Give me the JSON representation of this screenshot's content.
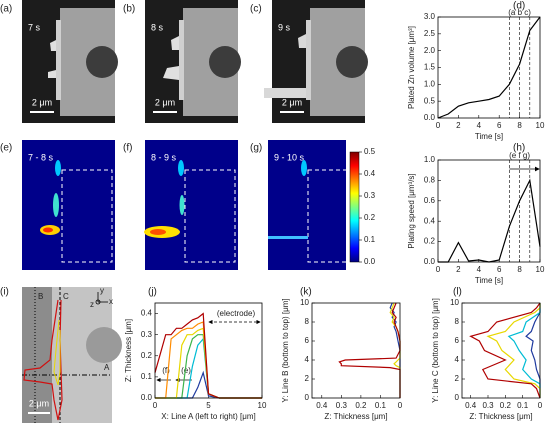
{
  "images": [
    {
      "label": "(a)",
      "time": "7 s",
      "scale_bar": "2 μm"
    },
    {
      "label": "(b)",
      "time": "8 s",
      "scale_bar": "2 μm"
    },
    {
      "label": "(c)",
      "time": "9 s",
      "scale_bar": "2 μm"
    },
    {
      "label": "(e)",
      "time": "7 - 8 s"
    },
    {
      "label": "(f)",
      "time": "8 - 9 s"
    },
    {
      "label": "(g)",
      "time": "9 - 10 s"
    },
    {
      "label": "(i)",
      "scale_bar": "2 μm",
      "lines": [
        "B",
        "C",
        "A"
      ],
      "axes": [
        "y",
        "z",
        "x"
      ]
    }
  ],
  "colorbar": {
    "ylim": [
      0,
      0.5
    ],
    "yticks": [
      {
        "value": 0,
        "label": "0.0"
      },
      0.1,
      0.2,
      0.3,
      0.4,
      0.5
    ]
  },
  "chart_data": [
    {
      "type": "line",
      "label": "(d)",
      "xlabel": "Time [s]",
      "ylabel": "Plated Zn volume [μm³]",
      "x": [
        0,
        1,
        2,
        3,
        4,
        5,
        6,
        7,
        8,
        9,
        10
      ],
      "series": [
        {
          "color": "#000000",
          "values": [
            0,
            0.12,
            0.35,
            0.45,
            0.5,
            0.55,
            0.65,
            1.0,
            1.6,
            2.6,
            3.0
          ]
        }
      ],
      "xlim": [
        0,
        10
      ],
      "ylim": [
        0,
        3
      ],
      "xticks": [
        0,
        2,
        4,
        6,
        8,
        10
      ],
      "yticks": [
        {
          "value": 0,
          "label": "0.0"
        },
        0.5,
        {
          "value": 1,
          "label": "1.0"
        },
        1.5,
        {
          "value": 2,
          "label": "2.0"
        },
        2.5,
        {
          "value": 3,
          "label": "3.0"
        }
      ],
      "vlines": [
        7,
        8,
        9
      ],
      "vline_label": "(a b c)"
    },
    {
      "type": "line",
      "label": "(h)",
      "xlabel": "Time [s]",
      "ylabel": "Plating speed [μm³/s]",
      "x": [
        0,
        1,
        2,
        3,
        4,
        5,
        6,
        7,
        8,
        9,
        10
      ],
      "series": [
        {
          "color": "#000000",
          "values": [
            0,
            0,
            0.19,
            0.01,
            0.02,
            0,
            0.02,
            0.35,
            0.6,
            0.8,
            0.15
          ]
        }
      ],
      "xlim": [
        0,
        10
      ],
      "ylim": [
        0,
        1
      ],
      "xticks": [
        0,
        2,
        4,
        6,
        8,
        10
      ],
      "yticks": [
        {
          "value": 0,
          "label": "0.0"
        },
        0.2,
        0.4,
        0.6,
        0.8,
        {
          "value": 1,
          "label": "1.0"
        }
      ],
      "vlines": [
        7,
        8,
        9
      ],
      "vline_label": "(e f g)",
      "arrow": true
    },
    {
      "type": "line",
      "label": "(j)",
      "xlabel": "X: Line A (left to right) [μm]",
      "ylabel": "Z: Thickness [μm]",
      "x": [
        0,
        1,
        1.5,
        2,
        2.5,
        3,
        3.5,
        4,
        4.5,
        5,
        6,
        8,
        10
      ],
      "series": [
        {
          "color": "#1f3a9f",
          "values": [
            0,
            0,
            0,
            0,
            0,
            0,
            0,
            0.05,
            0.12,
            0.01,
            0,
            0,
            0
          ]
        },
        {
          "color": "#00bcd4",
          "values": [
            0,
            0,
            0,
            0,
            0,
            0,
            0.15,
            0.25,
            0.28,
            0.02,
            0,
            0,
            0
          ]
        },
        {
          "color": "#3cb44b",
          "values": [
            0,
            0,
            0,
            0,
            0,
            0.2,
            0.28,
            0.3,
            0.3,
            0.02,
            0,
            0,
            0
          ]
        },
        {
          "color": "#e8d800",
          "values": [
            0,
            0,
            0,
            0,
            0.25,
            0.3,
            0.3,
            0.32,
            0.33,
            0.02,
            0,
            0,
            0
          ]
        },
        {
          "color": "#ff8c00",
          "values": [
            0,
            0,
            0.28,
            0.3,
            0.32,
            0.33,
            0.33,
            0.35,
            0.36,
            0.02,
            0,
            0,
            0
          ]
        },
        {
          "color": "#b00000",
          "values": [
            0.12,
            0.3,
            0.3,
            0.33,
            0.33,
            0.35,
            0.37,
            0.38,
            0.4,
            0.02,
            0,
            0,
            0
          ]
        }
      ],
      "xlim": [
        0,
        10
      ],
      "ylim": [
        0,
        0.45
      ],
      "xticks": [
        0,
        5,
        10
      ],
      "yticks": [
        {
          "value": 0,
          "label": "0.0"
        },
        0.1,
        0.2,
        0.3,
        0.4
      ],
      "annotations": [
        "(electrode)",
        "(f)",
        "(e)"
      ]
    },
    {
      "type": "line",
      "label": "(k)",
      "xlabel": "Z: Thickness [μm]",
      "ylabel": "Y: Line B (bottom to top) [μm]",
      "y": [
        0,
        1,
        2,
        3,
        3.2,
        3.4,
        3.6,
        3.8,
        4,
        4.2,
        5,
        6,
        7,
        7.5,
        8,
        8.5,
        9,
        9.5,
        10
      ],
      "series": [
        {
          "color": "#1f3a9f",
          "values": [
            0,
            0,
            0,
            0,
            0,
            0,
            0,
            0,
            0,
            0,
            0,
            0.01,
            0.02,
            0.03,
            0.02,
            0.04,
            0.03,
            0.05,
            0.04
          ]
        },
        {
          "color": "#e8d800",
          "values": [
            0,
            0,
            0,
            0,
            0,
            0.02,
            0.03,
            0.02,
            0.01,
            0,
            0,
            0,
            0.01,
            0.02,
            0.04,
            0.03,
            0.05,
            0.04,
            0.03
          ]
        },
        {
          "color": "#b00000",
          "values": [
            0,
            0,
            0,
            0,
            0.05,
            0.3,
            0.3,
            0.31,
            0.28,
            0.02,
            0,
            0,
            0.01,
            0.02,
            0.03,
            0.02,
            0.04,
            0.03,
            0.02
          ]
        }
      ],
      "xlim": [
        0.45,
        0
      ],
      "ylim": [
        0,
        10
      ],
      "xticks": [
        0.4,
        0.3,
        0.2,
        0.1,
        0
      ],
      "yticks": [
        0,
        2,
        4,
        6,
        8,
        10
      ]
    },
    {
      "type": "line",
      "label": "(l)",
      "xlabel": "Z: Thickness [μm]",
      "ylabel": "Y: Line C (bottom to top) [μm]",
      "y": [
        0,
        1,
        1.5,
        2,
        3,
        4,
        5,
        6,
        6.5,
        7,
        8,
        9,
        9.5,
        10
      ],
      "series": [
        {
          "color": "#1f3a9f",
          "values": [
            0,
            0,
            0,
            0,
            0.02,
            0.03,
            0.05,
            0.04,
            0.08,
            0.05,
            0.03,
            0,
            0,
            0
          ]
        },
        {
          "color": "#00bcd4",
          "values": [
            0,
            0,
            0,
            0.05,
            0.1,
            0.08,
            0.12,
            0.15,
            0.18,
            0.1,
            0.08,
            0,
            0,
            0
          ]
        },
        {
          "color": "#e8d800",
          "values": [
            0,
            0,
            0.03,
            0.15,
            0.2,
            0.15,
            0.22,
            0.25,
            0.3,
            0.2,
            0.15,
            0.03,
            0,
            0
          ]
        },
        {
          "color": "#b00000",
          "values": [
            0,
            0.02,
            0.05,
            0.3,
            0.33,
            0.2,
            0.32,
            0.35,
            0.4,
            0.3,
            0.25,
            0.05,
            0.02,
            0
          ]
        }
      ],
      "xlim": [
        0.45,
        0
      ],
      "ylim": [
        0,
        10
      ],
      "xticks": [
        0.4,
        0.3,
        0.2,
        0.1,
        0
      ],
      "yticks": [
        0,
        2,
        4,
        6,
        8,
        10
      ]
    }
  ]
}
